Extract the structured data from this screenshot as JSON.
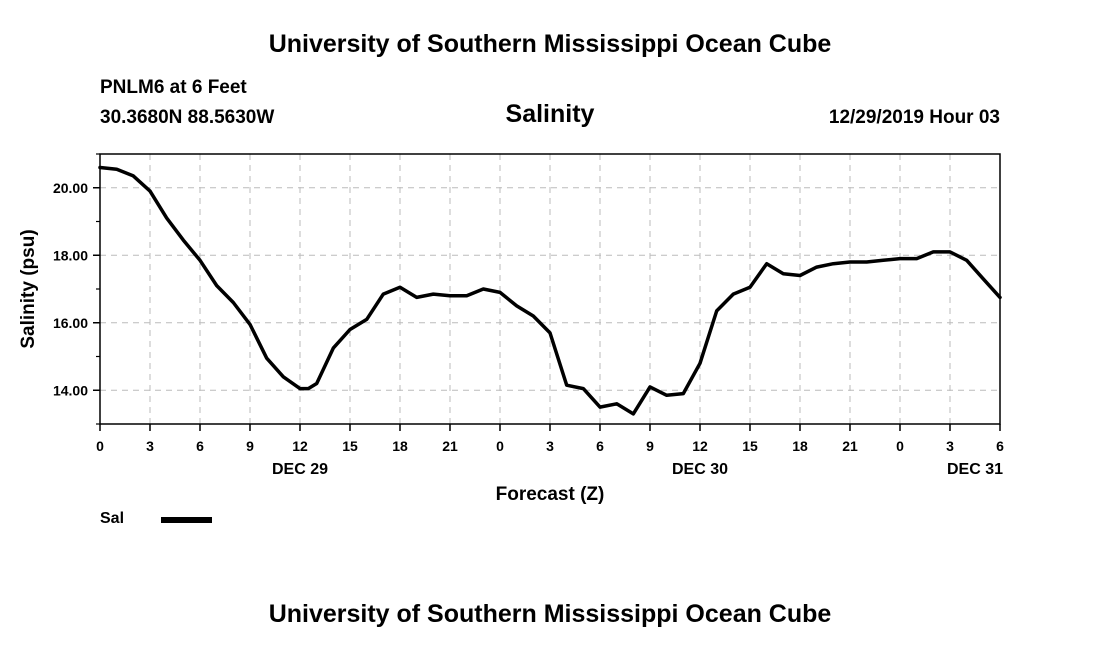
{
  "page": {
    "top_title": "University of Southern Mississippi Ocean Cube",
    "bottom_title": "University of Southern Mississippi Ocean Cube",
    "station": "PNLM6 at 6 Feet",
    "coords": "30.3680N 88.5630W",
    "datetime": "12/29/2019 Hour 03"
  },
  "chart_data": {
    "type": "line",
    "title": "Salinity",
    "xlabel": "Forecast (Z)",
    "ylabel": "Salinity (psu)",
    "xlim": [
      0,
      54
    ],
    "ylim": [
      13.0,
      21.0
    ],
    "yticks": [
      14,
      16,
      18,
      20
    ],
    "ytick_labels": [
      "14.00",
      "16.00",
      "18.00",
      "20.00"
    ],
    "xtick_positions": [
      0,
      3,
      6,
      9,
      12,
      15,
      18,
      21,
      24,
      27,
      30,
      33,
      36,
      39,
      42,
      45,
      48,
      51,
      54
    ],
    "xtick_labels": [
      "0",
      "3",
      "6",
      "9",
      "12",
      "15",
      "18",
      "21",
      "0",
      "3",
      "6",
      "9",
      "12",
      "15",
      "18",
      "21",
      "0",
      "3",
      "6"
    ],
    "day_labels": [
      {
        "x": 12,
        "label": "DEC 29"
      },
      {
        "x": 36,
        "label": "DEC 30"
      },
      {
        "x": 52.5,
        "label": "DEC 31"
      }
    ],
    "grid": true,
    "colors": {
      "line": "#000000",
      "grid": "#bbbbbb"
    },
    "series": [
      {
        "name": "Sal",
        "x": [
          0,
          1,
          2,
          3,
          4,
          5,
          6,
          7,
          8,
          9,
          10,
          11,
          12,
          12.5,
          13,
          14,
          15,
          16,
          17,
          18,
          19,
          20,
          21,
          22,
          23,
          24,
          25,
          26,
          27,
          28,
          29,
          30,
          31,
          32,
          33,
          34,
          35,
          36,
          37,
          38,
          39,
          40,
          41,
          42,
          43,
          44,
          45,
          46,
          47,
          48,
          49,
          50,
          51,
          52,
          53,
          54
        ],
        "y": [
          20.6,
          20.55,
          20.35,
          19.9,
          19.1,
          18.45,
          17.85,
          17.1,
          16.6,
          15.95,
          14.95,
          14.4,
          14.05,
          14.05,
          14.2,
          15.25,
          15.8,
          16.1,
          16.85,
          17.05,
          16.75,
          16.85,
          16.8,
          16.8,
          17.0,
          16.9,
          16.5,
          16.2,
          15.7,
          14.15,
          14.05,
          13.5,
          13.6,
          13.3,
          14.1,
          13.85,
          13.9,
          14.8,
          16.35,
          16.85,
          17.05,
          17.75,
          17.45,
          17.4,
          17.65,
          17.75,
          17.8,
          17.8,
          17.85,
          17.9,
          17.9,
          18.1,
          18.1,
          17.85,
          17.3,
          16.75
        ]
      }
    ]
  }
}
